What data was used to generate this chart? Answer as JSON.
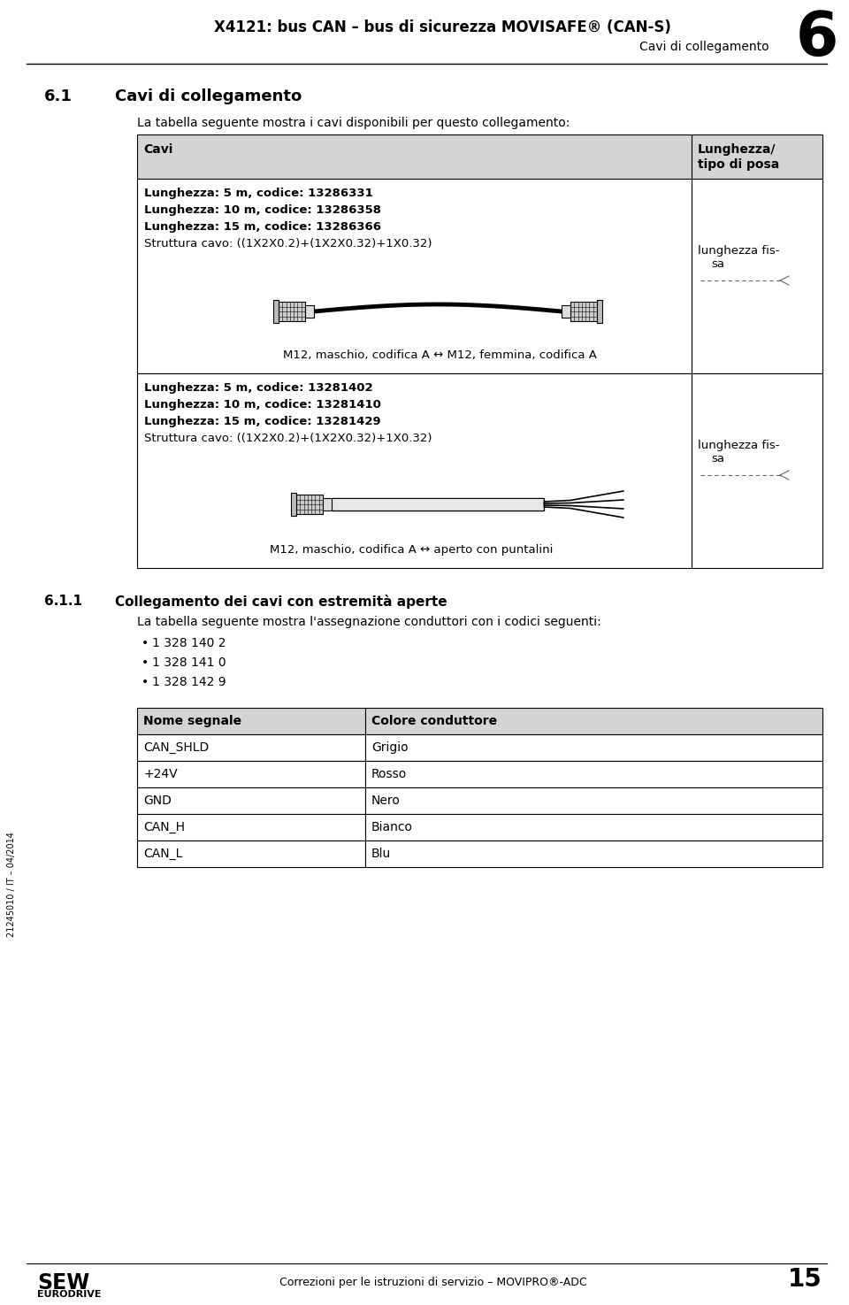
{
  "page_title": "X4121: bus CAN – bus di sicurezza MOVISAFE® (CAN-S)",
  "page_subtitle": "Cavi di collegamento",
  "page_number": "6",
  "section_title": "6.1",
  "section_title2": "Cavi di collegamento",
  "section_intro": "La tabella seguente mostra i cavi disponibili per questo collegamento:",
  "table1_col1_header": "Cavi",
  "table1_col2_header1": "Lunghezza/",
  "table1_col2_header2": "tipo di posa",
  "row1_bold_lines": [
    "Lunghezza: 5 m, codice: 13286331",
    "Lunghezza: 10 m, codice: 13286358",
    "Lunghezza: 15 m, codice: 13286366"
  ],
  "row1_normal_line": "Struttura cavo: ((1X2X0.2)+(1X2X0.32)+1X0.32)",
  "row1_col2_line1": "lunghezza fis-",
  "row1_col2_line2": "sa",
  "row1_caption": "M12, maschio, codifica A ↔ M12, femmina, codifica A",
  "row2_bold_lines": [
    "Lunghezza: 5 m, codice: 13281402",
    "Lunghezza: 10 m, codice: 13281410",
    "Lunghezza: 15 m, codice: 13281429"
  ],
  "row2_normal_line": "Struttura cavo: ((1X2X0.2)+(1X2X0.32)+1X0.32)",
  "row2_col2_line1": "lunghezza fis-",
  "row2_col2_line2": "sa",
  "row2_caption": "M12, maschio, codifica A ↔ aperto con puntalini",
  "subsection_num": "6.1.1",
  "subsection_title": "Collegamento dei cavi con estremità aperte",
  "subsection_intro": "La tabella seguente mostra l'assegnazione conduttori con i codici seguenti:",
  "bullets": [
    "1 328 140 2",
    "1 328 141 0",
    "1 328 142 9"
  ],
  "table2_col1_header": "Nome segnale",
  "table2_col2_header": "Colore conduttore",
  "table2_rows": [
    [
      "CAN_SHLD",
      "Grigio"
    ],
    [
      "+24V",
      "Rosso"
    ],
    [
      "GND",
      "Nero"
    ],
    [
      "CAN_H",
      "Bianco"
    ],
    [
      "CAN_L",
      "Blu"
    ]
  ],
  "footer_center": "Correzioni per le istruzioni di servizio – MOVIPRO®-ADC",
  "footer_page": "15",
  "side_text": "21245010 / IT – 04/2014"
}
